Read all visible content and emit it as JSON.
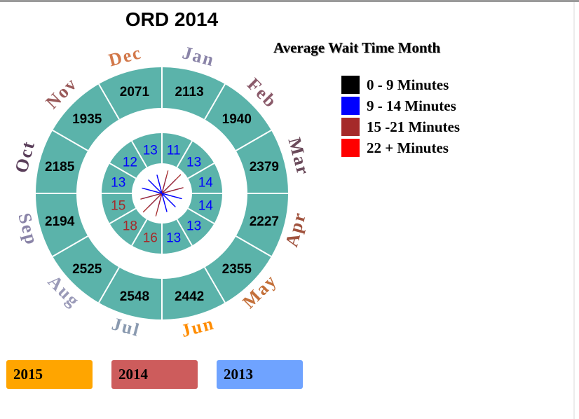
{
  "title": "ORD 2014",
  "legend": {
    "title": "Average Wait Time Month",
    "items": [
      {
        "label": "0 - 9 Minutes",
        "color": "#000000"
      },
      {
        "label": "9 - 14 Minutes",
        "color": "#0000ff"
      },
      {
        "label": "15 -21 Minutes",
        "color": "#a52a2a"
      },
      {
        "label": "22 + Minutes",
        "color": "#ff0000"
      }
    ]
  },
  "year_buttons": [
    {
      "label": "2015",
      "color": "#ffa500"
    },
    {
      "label": "2014",
      "color": "#cd5c5c"
    },
    {
      "label": "2013",
      "color": "#6fa3ff"
    }
  ],
  "colors": {
    "ring": "#5bb3aa",
    "separator": "#ffffff"
  },
  "chart_data": {
    "type": "radial",
    "title": "ORD 2014",
    "months": [
      "Jan",
      "Feb",
      "Mar",
      "Apr",
      "May",
      "Jun",
      "Jul",
      "Aug",
      "Sep",
      "Oct",
      "Nov",
      "Dec"
    ],
    "month_label_colors": [
      "#8a84a8",
      "#8a5a6a",
      "#6a4a5a",
      "#a0523d",
      "#c4703a",
      "#ff8c00",
      "#8a9ab0",
      "#9a9ab8",
      "#8a84a8",
      "#5a3e5a",
      "#9a5a5a",
      "#d2784a"
    ],
    "flights": [
      2113,
      1940,
      2379,
      2227,
      2355,
      2442,
      2548,
      2525,
      2194,
      2185,
      1935,
      2071
    ],
    "avg_wait_minutes": [
      11,
      13,
      14,
      14,
      13,
      13,
      16,
      18,
      15,
      13,
      12,
      13
    ],
    "wait_colors": [
      "#0000ff",
      "#0000ff",
      "#0000ff",
      "#0000ff",
      "#0000ff",
      "#0000ff",
      "#a52a2a",
      "#a52a2a",
      "#a52a2a",
      "#0000ff",
      "#0000ff",
      "#0000ff"
    ]
  }
}
